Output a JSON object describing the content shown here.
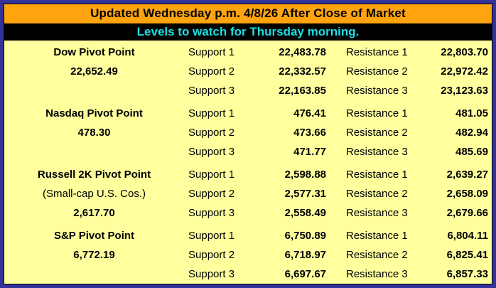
{
  "header": {
    "title": "Updated Wednesday p.m. 4/8/26 After Close of Market",
    "subtitle": "Levels to watch for Thursday morning."
  },
  "colors": {
    "frame": "#33339b",
    "title_bg": "#ffa30f",
    "title_text": "#000000",
    "subtitle_bg": "#000000",
    "subtitle_text": "#1bdfe3",
    "body_bg": "#ffff9e",
    "body_text": "#000000"
  },
  "sections": [
    {
      "label_lines": [
        {
          "text": "Dow Pivot Point"
        },
        {
          "text": "22,652.49"
        },
        {
          "text": ""
        }
      ],
      "rows": [
        {
          "support_label": "Support 1",
          "support_value": "22,483.78",
          "resistance_label": "Resistance 1",
          "resistance_value": "22,803.70"
        },
        {
          "support_label": "Support 2",
          "support_value": "22,332.57",
          "resistance_label": "Resistance 2",
          "resistance_value": "22,972.42"
        },
        {
          "support_label": "Support 3",
          "support_value": "22,163.85",
          "resistance_label": "Resistance 3",
          "resistance_value": "23,123.63"
        }
      ]
    },
    {
      "label_lines": [
        {
          "text": "Nasdaq Pivot Point"
        },
        {
          "text": "478.30"
        },
        {
          "text": ""
        }
      ],
      "rows": [
        {
          "support_label": "Support 1",
          "support_value": "476.41",
          "resistance_label": "Resistance 1",
          "resistance_value": "481.05"
        },
        {
          "support_label": "Support 2",
          "support_value": "473.66",
          "resistance_label": "Resistance 2",
          "resistance_value": "482.94"
        },
        {
          "support_label": "Support 3",
          "support_value": "471.77",
          "resistance_label": "Resistance 3",
          "resistance_value": "485.69"
        }
      ]
    },
    {
      "label_lines": [
        {
          "text": "Russell 2K Pivot Point"
        },
        {
          "text": "(Small-cap U.S. Cos.)"
        },
        {
          "text": "2,617.70"
        }
      ],
      "rows": [
        {
          "support_label": "Support 1",
          "support_value": "2,598.88",
          "resistance_label": "Resistance 1",
          "resistance_value": "2,639.27"
        },
        {
          "support_label": "Support 2",
          "support_value": "2,577.31",
          "resistance_label": "Resistance 2",
          "resistance_value": "2,658.09"
        },
        {
          "support_label": "Support 3",
          "support_value": "2,558.49",
          "resistance_label": "Resistance 3",
          "resistance_value": "2,679.66"
        }
      ]
    },
    {
      "label_lines": [
        {
          "text": "S&P Pivot Point"
        },
        {
          "text": "6,772.19"
        },
        {
          "text": ""
        }
      ],
      "rows": [
        {
          "support_label": "Support 1",
          "support_value": "6,750.89",
          "resistance_label": "Resistance 1",
          "resistance_value": "6,804.11"
        },
        {
          "support_label": "Support 2",
          "support_value": "6,718.97",
          "resistance_label": "Resistance 2",
          "resistance_value": "6,825.41"
        },
        {
          "support_label": "Support 3",
          "support_value": "6,697.67",
          "resistance_label": "Resistance 3",
          "resistance_value": "6,857.33"
        }
      ]
    }
  ]
}
